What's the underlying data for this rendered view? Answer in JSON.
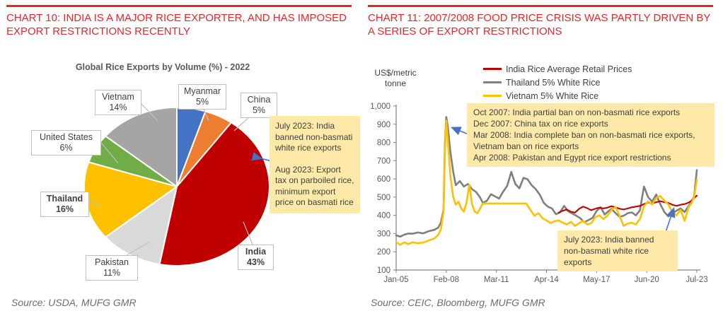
{
  "colors": {
    "accent_red": "#e8252a",
    "annotation_bg": "#ffe9a9",
    "arrow_blue": "#4472c4",
    "axis_gray": "#808080",
    "text_gray": "#595959"
  },
  "chart_data": [
    {
      "type": "pie",
      "heading": "CHART 10: INDIA IS A MAJOR RICE EXPORTER, AND HAS IMPOSED EXPORT RESTRICTIONS RECENTLY",
      "title": "Global Rice Exports by Volume (%) - 2022",
      "slices": [
        {
          "label": "Myanmar",
          "value": 5,
          "color": "#4472C4",
          "bold": false
        },
        {
          "label": "China",
          "value": 5,
          "color": "#ED7D31",
          "bold": false
        },
        {
          "label": "India",
          "value": 43,
          "color": "#C00000",
          "bold": true
        },
        {
          "label": "Pakistan",
          "value": 11,
          "color": "#D9D9D9",
          "bold": false
        },
        {
          "label": "Thailand",
          "value": 16,
          "color": "#FFC000",
          "bold": true
        },
        {
          "label": "United States",
          "value": 6,
          "color": "#70AD47",
          "bold": false
        },
        {
          "label": "Vietnam",
          "value": 14,
          "color": "#A5A5A5",
          "bold": false
        }
      ],
      "annotation": {
        "para1": "July 2023: India banned non-basmati white rice exports",
        "para2": "Aug 2023: Export tax on parboiled rice, minimum export price on basmati rice"
      },
      "source": "Source: USDA, MUFG GMR"
    },
    {
      "type": "line",
      "heading": "CHART 11: 2007/2008 FOOD PRICE CRISIS WAS PARTLY DRIVEN BY A SERIES OF EXPORT RESTRICTIONS",
      "y_axis_label": "US$/metric tonne",
      "x_unit": "months since Jan-2005",
      "x_range": [
        0,
        222
      ],
      "y_range": [
        100,
        1000
      ],
      "grid": false,
      "legend_position": "top",
      "x_tick_months": [
        0,
        37,
        74,
        111,
        148,
        185,
        222
      ],
      "x_tick_labels": [
        "Jan-05",
        "Feb-08",
        "Mar-11",
        "Apr-14",
        "May-17",
        "Jun-20",
        "Jul-23"
      ],
      "y_tick_values": [
        100,
        200,
        300,
        400,
        500,
        600,
        700,
        800,
        900,
        1000
      ],
      "y_tick_labels": [
        "100",
        "200",
        "300",
        "400",
        "500",
        "600",
        "700",
        "800",
        "900",
        "1,000"
      ],
      "series": [
        {
          "name": "India Rice Average Retail Prices",
          "color": "#C00000",
          "points": [
            [
              120,
              415
            ],
            [
              123,
              425
            ],
            [
              126,
              432
            ],
            [
              129,
              420
            ],
            [
              132,
              415
            ],
            [
              135,
              435
            ],
            [
              138,
              448
            ],
            [
              141,
              440
            ],
            [
              144,
              428
            ],
            [
              147,
              436
            ],
            [
              150,
              442
            ],
            [
              153,
              438
            ],
            [
              156,
              442
            ],
            [
              159,
              450
            ],
            [
              162,
              444
            ],
            [
              165,
              436
            ],
            [
              168,
              432
            ],
            [
              171,
              438
            ],
            [
              174,
              444
            ],
            [
              177,
              448
            ],
            [
              180,
              452
            ],
            [
              183,
              462
            ],
            [
              186,
              470
            ],
            [
              189,
              466
            ],
            [
              192,
              472
            ],
            [
              195,
              478
            ],
            [
              198,
              472
            ],
            [
              201,
              468
            ],
            [
              204,
              458
            ],
            [
              207,
              452
            ],
            [
              210,
              458
            ],
            [
              213,
              462
            ],
            [
              216,
              470
            ],
            [
              218,
              480
            ],
            [
              220,
              495
            ],
            [
              222,
              508
            ]
          ]
        },
        {
          "name": "Thailand 5% White Rice",
          "color": "#7F7F7F",
          "points": [
            [
              0,
              290
            ],
            [
              3,
              283
            ],
            [
              6,
              294
            ],
            [
              9,
              300
            ],
            [
              12,
              299
            ],
            [
              16,
              306
            ],
            [
              20,
              301
            ],
            [
              24,
              313
            ],
            [
              28,
              320
            ],
            [
              31,
              332
            ],
            [
              33,
              360
            ],
            [
              35,
              430
            ],
            [
              36,
              780
            ],
            [
              37,
              940
            ],
            [
              38,
              895
            ],
            [
              40,
              750
            ],
            [
              42,
              645
            ],
            [
              44,
              565
            ],
            [
              47,
              588
            ],
            [
              50,
              558
            ],
            [
              53,
              572
            ],
            [
              56,
              544
            ],
            [
              59,
              528
            ],
            [
              62,
              498
            ],
            [
              64,
              468
            ],
            [
              67,
              480
            ],
            [
              70,
              516
            ],
            [
              73,
              504
            ],
            [
              76,
              492
            ],
            [
              79,
              530
            ],
            [
              82,
              562
            ],
            [
              85,
              638
            ],
            [
              88,
              572
            ],
            [
              91,
              548
            ],
            [
              94,
              606
            ],
            [
              97,
              598
            ],
            [
              100,
              566
            ],
            [
              103,
              544
            ],
            [
              106,
              514
            ],
            [
              109,
              468
            ],
            [
              112,
              448
            ],
            [
              115,
              438
            ],
            [
              118,
              406
            ],
            [
              121,
              416
            ],
            [
              124,
              452
            ],
            [
              127,
              422
            ],
            [
              130,
              410
            ],
            [
              133,
              398
            ],
            [
              136,
              384
            ],
            [
              139,
              362
            ],
            [
              142,
              374
            ],
            [
              145,
              386
            ],
            [
              148,
              424
            ],
            [
              151,
              444
            ],
            [
              154,
              404
            ],
            [
              156,
              418
            ],
            [
              159,
              436
            ],
            [
              162,
              412
            ],
            [
              165,
              392
            ],
            [
              168,
              398
            ],
            [
              171,
              412
            ],
            [
              174,
              416
            ],
            [
              177,
              400
            ],
            [
              180,
              428
            ],
            [
              183,
              558
            ],
            [
              186,
              500
            ],
            [
              189,
              476
            ],
            [
              192,
              514
            ],
            [
              195,
              462
            ],
            [
              198,
              418
            ],
            [
              201,
              394
            ],
            [
              204,
              410
            ],
            [
              207,
              426
            ],
            [
              210,
              438
            ],
            [
              213,
              418
            ],
            [
              216,
              452
            ],
            [
              218,
              474
            ],
            [
              220,
              504
            ],
            [
              222,
              648
            ]
          ]
        },
        {
          "name": "Vietnam 5% White Rice",
          "color": "#FFC000",
          "points": [
            [
              0,
              253
            ],
            [
              3,
              238
            ],
            [
              6,
              252
            ],
            [
              9,
              242
            ],
            [
              12,
              252
            ],
            [
              16,
              247
            ],
            [
              20,
              250
            ],
            [
              24,
              262
            ],
            [
              28,
              272
            ],
            [
              31,
              292
            ],
            [
              33,
              322
            ],
            [
              35,
              420
            ],
            [
              36,
              740
            ],
            [
              37,
              920
            ],
            [
              38,
              830
            ],
            [
              40,
              620
            ],
            [
              42,
              505
            ],
            [
              44,
              458
            ],
            [
              46,
              475
            ],
            [
              48,
              438
            ],
            [
              50,
              420
            ],
            [
              52,
              470
            ],
            [
              54,
              568
            ],
            [
              56,
              462
            ],
            [
              58,
              420
            ],
            [
              60,
              412
            ],
            [
              62,
              438
            ],
            [
              64,
              465
            ],
            [
              96,
              465
            ],
            [
              99,
              432
            ],
            [
              102,
              398
            ],
            [
              105,
              412
            ],
            [
              108,
              385
            ],
            [
              111,
              372
            ],
            [
              114,
              358
            ],
            [
              117,
              368
            ],
            [
              120,
              372
            ],
            [
              123,
              360
            ],
            [
              126,
              350
            ],
            [
              129,
              365
            ],
            [
              132,
              342
            ],
            [
              135,
              356
            ],
            [
              138,
              370
            ],
            [
              141,
              350
            ],
            [
              144,
              356
            ],
            [
              147,
              390
            ],
            [
              150,
              400
            ],
            [
              153,
              380
            ],
            [
              156,
              398
            ],
            [
              159,
              430
            ],
            [
              162,
              446
            ],
            [
              165,
              396
            ],
            [
              168,
              342
            ],
            [
              171,
              355
            ],
            [
              174,
              360
            ],
            [
              177,
              350
            ],
            [
              180,
              380
            ],
            [
              183,
              450
            ],
            [
              186,
              476
            ],
            [
              189,
              460
            ],
            [
              192,
              496
            ],
            [
              195,
              506
            ],
            [
              198,
              480
            ],
            [
              201,
              460
            ],
            [
              204,
              416
            ],
            [
              207,
              400
            ],
            [
              210,
              430
            ],
            [
              213,
              370
            ],
            [
              216,
              446
            ],
            [
              218,
              466
            ],
            [
              220,
              500
            ],
            [
              222,
              596
            ]
          ]
        }
      ],
      "annotations": {
        "box1": {
          "lines": [
            "Oct 2007: India partial ban on non-basmati rice exports",
            "Dec 2007: China tax on rice exports",
            "Mar 2008: India complete ban on non-basmati rice exports, Vietnam ban on rice exports",
            "Apr 2008: Pakistan and Egypt rice export restrictions"
          ]
        },
        "box2": {
          "text": "July 2023: India banned non-basmati white rice exports"
        }
      },
      "source": "Source: CEIC, Bloomberg, MUFG GMR"
    }
  ]
}
